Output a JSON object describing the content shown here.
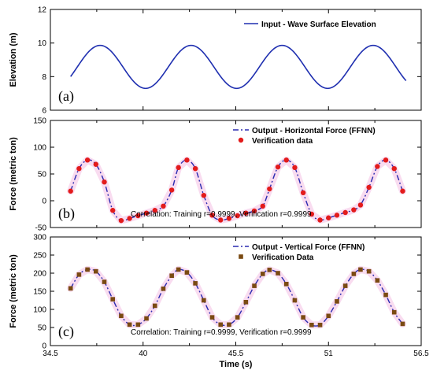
{
  "chart_data": [
    {
      "type": "line",
      "panel_label": "(a)",
      "ylabel": "Elevation (m)",
      "ylim": [
        6,
        12
      ],
      "yticks": [
        6,
        8,
        10,
        12
      ],
      "xlim": [
        34.5,
        56.5
      ],
      "legend_position": "top-right",
      "series": [
        {
          "name": "Input - Wave Surface Elevation",
          "color": "#1f2fb0",
          "style": "solid",
          "function": {
            "mean": 8.58,
            "amplitude": 1.28,
            "period": 5.4,
            "peak_x": 37.45
          },
          "x_range": [
            35.7,
            55.6
          ]
        }
      ]
    },
    {
      "type": "line",
      "panel_label": "(b)",
      "ylabel": "Force (metric ton)",
      "ylim": [
        -50,
        150
      ],
      "yticks": [
        -50,
        0,
        50,
        100,
        150
      ],
      "xlim": [
        34.5,
        56.5
      ],
      "legend_position": "top-right",
      "annotation": "Correlation: Training r=0.9999, Verification r=0.9999",
      "series": [
        {
          "name": "Output - Horizontal Force (FFNN)",
          "color": "#2a2ab0",
          "style": "dashdot",
          "marker": "circle",
          "x": [
            35.7,
            36.2,
            36.7,
            37.2,
            37.7,
            38.2,
            38.7,
            39.2,
            39.7,
            40.2,
            40.7,
            41.2,
            41.7,
            42.1,
            42.6,
            43.1,
            43.6,
            44.1,
            44.6,
            45.1,
            45.6,
            46.1,
            46.6,
            47.1,
            47.5,
            48.0,
            48.5,
            49.0,
            49.5,
            50.0,
            50.5,
            51.0,
            51.5,
            52.0,
            52.5,
            52.9,
            53.4,
            53.9,
            54.4,
            54.9,
            55.4
          ],
          "values": [
            18,
            60,
            76,
            68,
            35,
            -18,
            -37,
            -33,
            -28,
            -23,
            -18,
            -10,
            20,
            62,
            76,
            60,
            10,
            -27,
            -36,
            -33,
            -28,
            -23,
            -19,
            -10,
            22,
            63,
            76,
            62,
            15,
            -25,
            -36,
            -32,
            -27,
            -22,
            -17,
            -8,
            25,
            64,
            76,
            60,
            18
          ]
        },
        {
          "name": "Verification data",
          "color": "#e31b1b",
          "style": "none",
          "marker": "circle"
        }
      ]
    },
    {
      "type": "line",
      "panel_label": "(c)",
      "ylabel": "Force (metric ton)",
      "xlabel": "Time (s)",
      "ylim": [
        0,
        300
      ],
      "yticks": [
        0,
        50,
        100,
        150,
        200,
        250,
        300
      ],
      "xlim": [
        34.5,
        56.5
      ],
      "xticks": [
        34.5,
        40,
        45.5,
        51,
        56.5
      ],
      "xtick_labels": [
        "34.5",
        "40",
        "45.5",
        "51",
        "56.5"
      ],
      "legend_position": "top-right",
      "annotation": "Correlation: Training r=0.9999, Verification r=0.9999",
      "series": [
        {
          "name": "Output - Vertical Force (FFNN)",
          "color": "#2a2ab0",
          "style": "dashdot",
          "marker": "square",
          "x": [
            35.7,
            36.2,
            36.7,
            37.2,
            37.7,
            38.2,
            38.7,
            39.2,
            39.7,
            40.2,
            40.7,
            41.2,
            41.7,
            42.1,
            42.6,
            43.1,
            43.6,
            44.1,
            44.6,
            45.1,
            45.6,
            46.1,
            46.6,
            47.1,
            47.5,
            48.0,
            48.5,
            49.0,
            49.5,
            50.0,
            50.5,
            51.0,
            51.5,
            52.0,
            52.5,
            52.9,
            53.4,
            53.9,
            54.4,
            54.9,
            55.4
          ],
          "values": [
            158,
            196,
            210,
            205,
            176,
            128,
            82,
            58,
            58,
            75,
            110,
            157,
            193,
            210,
            202,
            172,
            125,
            78,
            58,
            58,
            78,
            120,
            165,
            198,
            209,
            200,
            170,
            125,
            78,
            57,
            57,
            82,
            122,
            165,
            198,
            210,
            205,
            180,
            140,
            92,
            60
          ]
        },
        {
          "name": "Verification Data",
          "color": "#7a4a12",
          "style": "none",
          "marker": "square"
        }
      ]
    }
  ]
}
